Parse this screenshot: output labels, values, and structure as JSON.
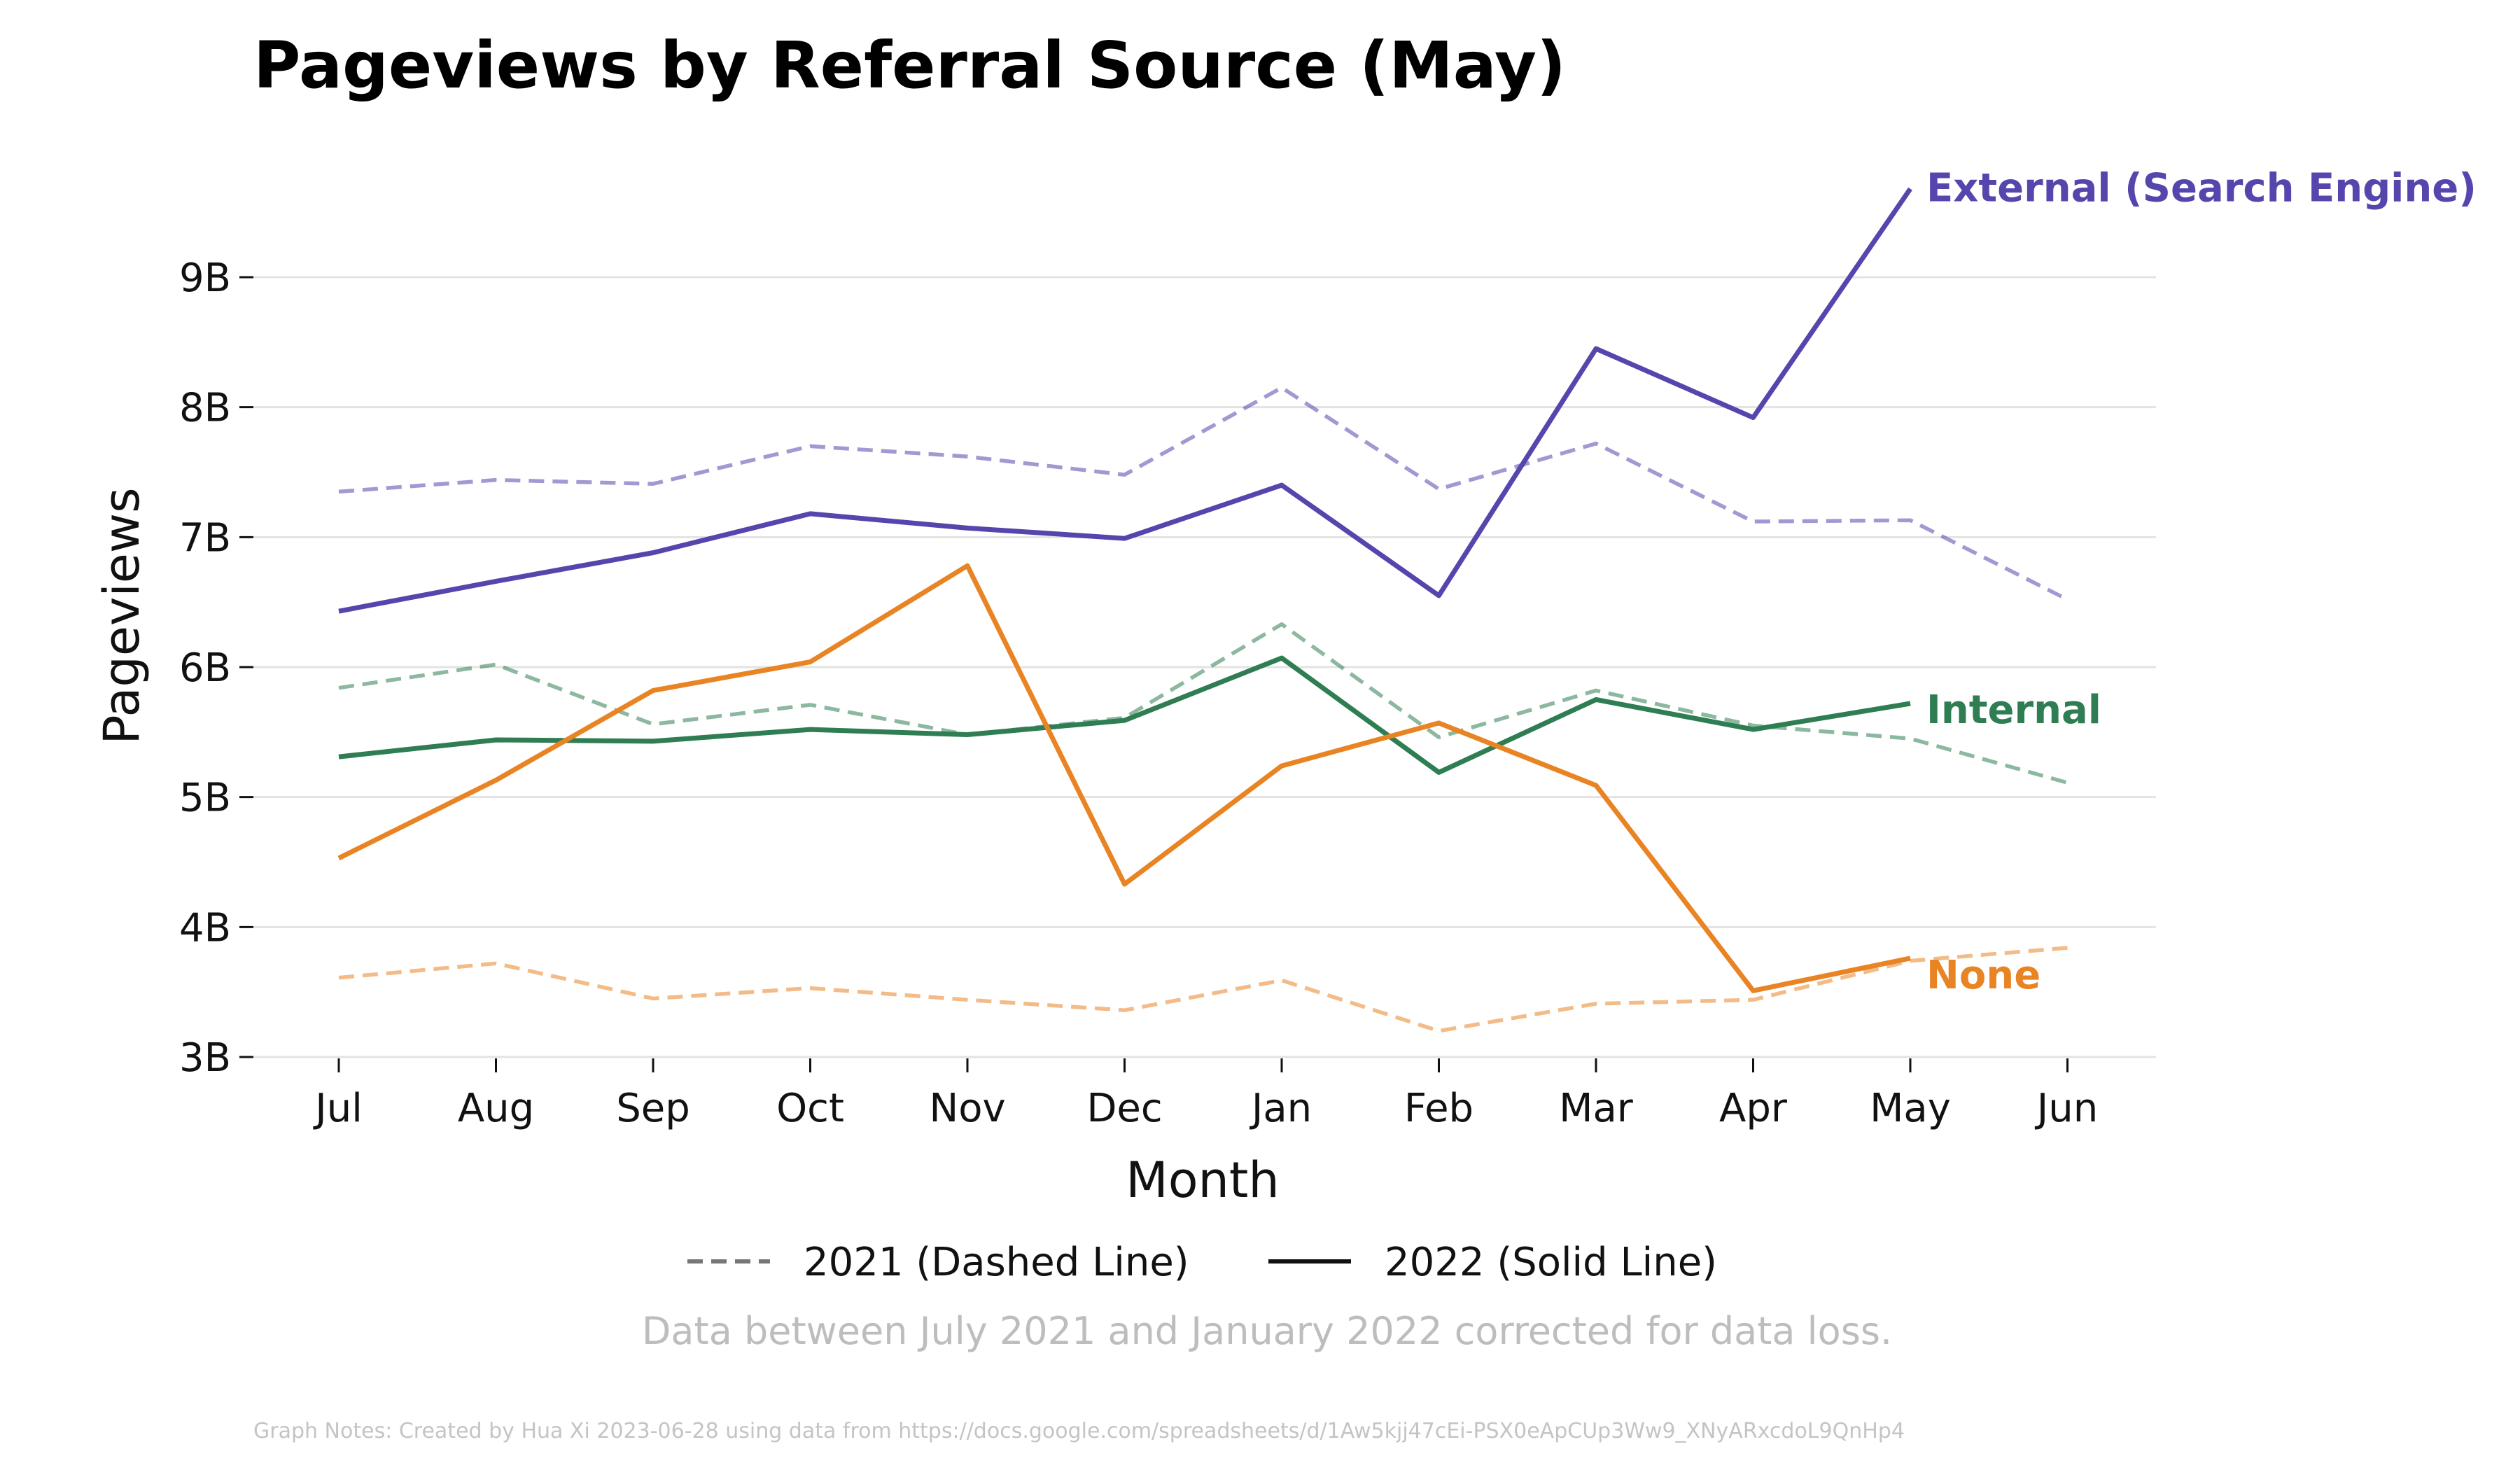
{
  "chart_data": {
    "type": "line",
    "title": "Pageviews by Referral Source (May)",
    "xlabel": "Month",
    "ylabel": "Pageviews",
    "categories": [
      "Jul",
      "Aug",
      "Sep",
      "Oct",
      "Nov",
      "Dec",
      "Jan",
      "Feb",
      "Mar",
      "Apr",
      "May",
      "Jun"
    ],
    "ylim": [
      3,
      9.8
    ],
    "yticks": [
      3,
      4,
      5,
      6,
      7,
      8,
      9
    ],
    "ytick_labels": [
      "3B",
      "4B",
      "5B",
      "6B",
      "7B",
      "8B",
      "9B"
    ],
    "grid": "horizontal",
    "series": [
      {
        "name": "External (Search Engine)",
        "color": "#5546ad",
        "values_2021": [
          7.35,
          7.44,
          7.41,
          7.7,
          7.62,
          7.48,
          8.15,
          7.37,
          7.72,
          7.12,
          7.13,
          6.52
        ],
        "values_2022": [
          6.43,
          6.66,
          6.88,
          7.18,
          7.07,
          6.99,
          7.4,
          6.55,
          8.45,
          7.92,
          9.68
        ]
      },
      {
        "name": "Internal",
        "color": "#2f7d52",
        "values_2021": [
          5.84,
          6.02,
          5.56,
          5.71,
          5.48,
          5.61,
          6.33,
          5.46,
          5.82,
          5.55,
          5.45,
          5.11
        ],
        "values_2022": [
          5.31,
          5.44,
          5.43,
          5.52,
          5.48,
          5.59,
          6.07,
          5.19,
          5.75,
          5.52,
          5.72
        ]
      },
      {
        "name": "None",
        "color": "#e98424",
        "values_2021": [
          3.61,
          3.72,
          3.45,
          3.53,
          3.44,
          3.36,
          3.59,
          3.2,
          3.41,
          3.44,
          3.74,
          3.84
        ],
        "values_2022": [
          4.53,
          5.13,
          5.82,
          6.04,
          6.78,
          4.33,
          5.24,
          5.57,
          5.09,
          3.51,
          3.76
        ]
      }
    ],
    "legend": {
      "placement": "bottom",
      "dashed_label": "2021 (Dashed Line)",
      "solid_label": "2022 (Solid Line)"
    },
    "note": "Data between July 2021 and January 2022 corrected for data loss.",
    "footer": "Graph Notes: Created by Hua Xi 2023-06-28 using data from https://docs.google.com/spreadsheets/d/1Aw5kjj47cEi-PSX0eApCUp3Ww9_XNyARxcdoL9QnHp4"
  }
}
